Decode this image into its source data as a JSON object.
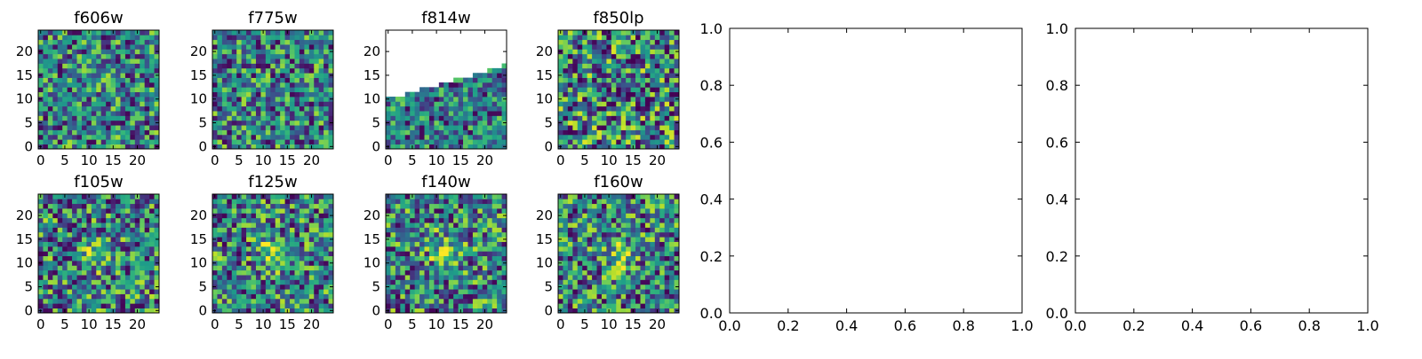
{
  "colormap": "viridis",
  "colors": {
    "axes_frame": "#000000",
    "background": "#ffffff"
  },
  "chart_data": [
    {
      "type": "heatmap",
      "title": "f606w",
      "grid_size": 25,
      "xlim": [
        0,
        24
      ],
      "ylim": [
        0,
        24
      ],
      "xticks": [
        0,
        5,
        10,
        15,
        20
      ],
      "yticks": [
        0,
        5,
        10,
        15,
        20
      ],
      "blob": null,
      "seed": 11,
      "contrast": 0.85
    },
    {
      "type": "heatmap",
      "title": "f775w",
      "grid_size": 25,
      "xlim": [
        0,
        24
      ],
      "ylim": [
        0,
        24
      ],
      "xticks": [
        0,
        5,
        10,
        15,
        20
      ],
      "yticks": [
        0,
        5,
        10,
        15,
        20
      ],
      "blob": null,
      "seed": 23,
      "contrast": 0.85
    },
    {
      "type": "heatmap",
      "title": "f814w",
      "grid_size": 25,
      "xlim": [
        0,
        24
      ],
      "ylim": [
        0,
        24
      ],
      "xticks": [
        0,
        5,
        10,
        15,
        20
      ],
      "yticks": [
        0,
        5,
        10,
        15,
        20
      ],
      "blob": null,
      "seed": 37,
      "contrast": 0.7,
      "missing_region": "upper-left triangular wedge empty (white); valid data below a line rising from row 10 at x=0 to row 17 at x=24"
    },
    {
      "type": "heatmap",
      "title": "f850lp",
      "grid_size": 25,
      "xlim": [
        0,
        24
      ],
      "ylim": [
        0,
        24
      ],
      "xticks": [
        0,
        5,
        10,
        15,
        20
      ],
      "yticks": [
        0,
        5,
        10,
        15,
        20
      ],
      "blob": null,
      "seed": 41,
      "contrast": 1.0
    },
    {
      "type": "heatmap",
      "title": "f105w",
      "grid_size": 25,
      "xlim": [
        0,
        24
      ],
      "ylim": [
        0,
        24
      ],
      "xticks": [
        0,
        5,
        10,
        15,
        20
      ],
      "yticks": [
        0,
        5,
        10,
        15,
        20
      ],
      "blob": [
        12,
        12
      ],
      "seed": 53,
      "contrast": 0.9
    },
    {
      "type": "heatmap",
      "title": "f125w",
      "grid_size": 25,
      "xlim": [
        0,
        24
      ],
      "ylim": [
        0,
        24
      ],
      "xticks": [
        0,
        5,
        10,
        15,
        20
      ],
      "yticks": [
        0,
        5,
        10,
        15,
        20
      ],
      "blob": [
        12,
        12
      ],
      "seed": 67,
      "contrast": 0.9
    },
    {
      "type": "heatmap",
      "title": "f140w",
      "grid_size": 25,
      "xlim": [
        0,
        24
      ],
      "ylim": [
        0,
        24
      ],
      "xticks": [
        0,
        5,
        10,
        15,
        20
      ],
      "yticks": [
        0,
        5,
        10,
        15,
        20
      ],
      "blob": [
        12,
        13
      ],
      "seed": 79,
      "contrast": 0.9
    },
    {
      "type": "heatmap",
      "title": "f160w",
      "grid_size": 25,
      "xlim": [
        0,
        24
      ],
      "ylim": [
        0,
        24
      ],
      "xticks": [
        0,
        5,
        10,
        15,
        20
      ],
      "yticks": [
        0,
        5,
        10,
        15,
        20
      ],
      "blob": [
        12,
        12
      ],
      "seed": 83,
      "contrast": 0.9
    },
    {
      "type": "scatter",
      "title": "",
      "xlabel": "",
      "ylabel": "",
      "series": [],
      "xlim": [
        0.0,
        1.0
      ],
      "ylim": [
        0.0,
        1.0
      ],
      "xticks": [
        "0.0",
        "0.2",
        "0.4",
        "0.6",
        "0.8",
        "1.0"
      ],
      "yticks": [
        "0.0",
        "0.2",
        "0.4",
        "0.6",
        "0.8",
        "1.0"
      ]
    },
    {
      "type": "scatter",
      "title": "",
      "xlabel": "",
      "ylabel": "",
      "series": [],
      "xlim": [
        0.0,
        1.0
      ],
      "ylim": [
        0.0,
        1.0
      ],
      "xticks": [
        "0.0",
        "0.2",
        "0.4",
        "0.6",
        "0.8",
        "1.0"
      ],
      "yticks": [
        "0.0",
        "0.2",
        "0.4",
        "0.6",
        "0.8",
        "1.0"
      ]
    }
  ]
}
